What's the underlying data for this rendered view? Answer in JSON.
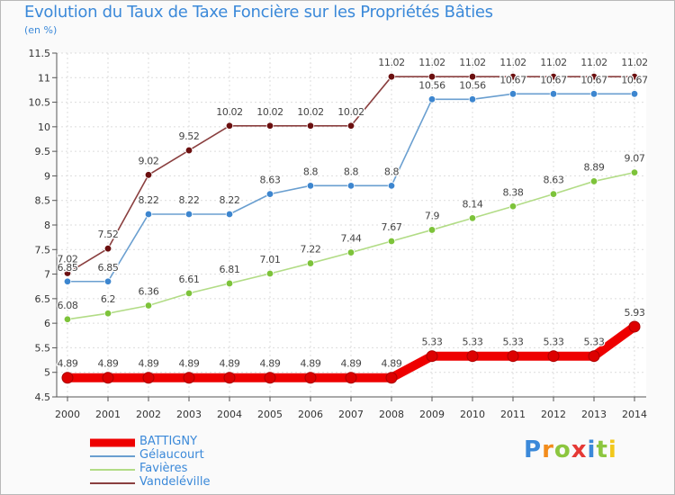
{
  "header": {
    "title": "Evolution du Taux de Taxe Foncière sur les Propriétés Bâties",
    "unit": "(en %)"
  },
  "logo": {
    "text": "Proxiti",
    "letters": [
      "P",
      "r",
      "o",
      "x",
      "i",
      "t",
      "i"
    ],
    "colors": [
      "#3b89d9",
      "#f28c1b",
      "#8cc63f",
      "#e53935",
      "#3b89d9",
      "#8cc63f",
      "#f2c81b"
    ]
  },
  "chart_data": {
    "type": "line",
    "title": "Evolution du Taux de Taxe Foncière sur les Propriétés Bâties",
    "ylabel": "(en %)",
    "xlabel": "",
    "x": [
      "2000",
      "2001",
      "2002",
      "2003",
      "2004",
      "2005",
      "2006",
      "2007",
      "2008",
      "2009",
      "2010",
      "2011",
      "2012",
      "2013",
      "2014"
    ],
    "ylim": [
      4.5,
      11.5
    ],
    "yticks": [
      4.5,
      5,
      5.5,
      6,
      6.5,
      7,
      7.5,
      8,
      8.5,
      9,
      9.5,
      10,
      10.5,
      11,
      11.5
    ],
    "ytick_labels": [
      "4.5",
      "5",
      "5.5",
      "6",
      "6.5",
      "7",
      "7.5",
      "8",
      "8.5",
      "9",
      "9.5",
      "10",
      "10.5",
      "11",
      "11.5"
    ],
    "grid": true,
    "legend_position": "bottom-left",
    "series": [
      {
        "name": "BATTIGNY",
        "color": "#ee0000",
        "marker_color": "#dd0000",
        "emphasis": true,
        "values": [
          4.89,
          4.89,
          4.89,
          4.89,
          4.89,
          4.89,
          4.89,
          4.89,
          4.89,
          5.33,
          5.33,
          5.33,
          5.33,
          5.33,
          5.93
        ],
        "labels": [
          "4.89",
          "4.89",
          "4.89",
          "4.89",
          "4.89",
          "4.89",
          "4.89",
          "4.89",
          "4.89",
          "5.33",
          "5.33",
          "5.33",
          "5.33",
          "5.33",
          "5.93"
        ]
      },
      {
        "name": "Gélaucourt",
        "color": "#6a9fd0",
        "marker_color": "#3d86cf",
        "values": [
          6.85,
          6.85,
          8.22,
          8.22,
          8.22,
          8.63,
          8.8,
          8.8,
          8.8,
          10.56,
          10.56,
          10.67,
          10.67,
          10.67,
          10.67
        ],
        "labels": [
          "6.85",
          "6.85",
          "8.22",
          "8.22",
          "8.22",
          "8.63",
          "8.8",
          "8.8",
          "8.8",
          "10.56",
          "10.56",
          "10.67",
          "10.67",
          "10.67",
          "10.67"
        ]
      },
      {
        "name": "Favières",
        "color": "#b2dc86",
        "marker_color": "#7dc33a",
        "values": [
          6.08,
          6.2,
          6.36,
          6.61,
          6.81,
          7.01,
          7.22,
          7.44,
          7.67,
          7.9,
          8.14,
          8.38,
          8.63,
          8.89,
          9.07
        ],
        "labels": [
          "6.08",
          "6.2",
          "6.36",
          "6.61",
          "6.81",
          "7.01",
          "7.22",
          "7.44",
          "7.67",
          "7.9",
          "8.14",
          "8.38",
          "8.63",
          "8.89",
          "9.07"
        ]
      },
      {
        "name": "Vandeléville",
        "color": "#8a3f3f",
        "marker_color": "#6b0f0f",
        "values": [
          7.02,
          7.52,
          9.02,
          9.52,
          10.02,
          10.02,
          10.02,
          10.02,
          11.02,
          11.02,
          11.02,
          11.02,
          11.02,
          11.02,
          11.02
        ],
        "labels": [
          "7.02",
          "7.52",
          "9.02",
          "9.52",
          "10.02",
          "10.02",
          "10.02",
          "10.02",
          "11.02",
          "11.02",
          "11.02",
          "11.02",
          "11.02",
          "11.02",
          "11.02"
        ]
      }
    ]
  }
}
